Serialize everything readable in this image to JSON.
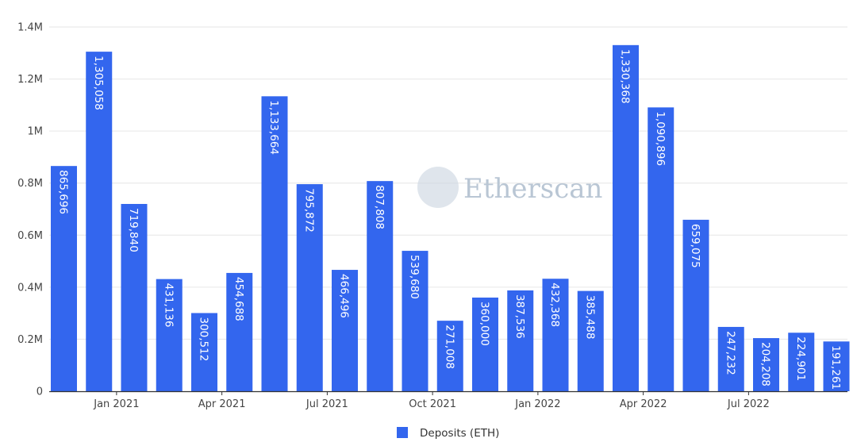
{
  "chart_data": {
    "type": "bar",
    "series": [
      {
        "name": "Deposits (ETH)",
        "color": "#3366ee",
        "values": [
          865696,
          1305058,
          719840,
          431136,
          300512,
          454688,
          1133664,
          795872,
          466496,
          807808,
          539680,
          271008,
          360000,
          387536,
          432368,
          385488,
          1330368,
          1090896,
          659075,
          247232,
          204208,
          224901,
          191261
        ],
        "value_labels": [
          "865,696",
          "1,305,058",
          "719,840",
          "431,136",
          "300,512",
          "454,688",
          "1,133,664",
          "795,872",
          "466,496",
          "807,808",
          "539,680",
          "271,008",
          "360,000",
          "387,536",
          "432,368",
          "385,488",
          "1,330,368",
          "1,090,896",
          "659,075",
          "247,232",
          "204,208",
          "224,901",
          "191,261"
        ]
      }
    ],
    "ylim": [
      0,
      1400000
    ],
    "yticks": [
      {
        "value": 0,
        "label": "0"
      },
      {
        "value": 200000,
        "label": "0.2M"
      },
      {
        "value": 400000,
        "label": "0.4M"
      },
      {
        "value": 600000,
        "label": "0.6M"
      },
      {
        "value": 800000,
        "label": "0.8M"
      },
      {
        "value": 1000000,
        "label": "1M"
      },
      {
        "value": 1200000,
        "label": "1.2M"
      },
      {
        "value": 1400000,
        "label": "1.4M"
      }
    ],
    "xticks": [
      {
        "label": "Jan 2021",
        "bar_index": 1.5
      },
      {
        "label": "Apr 2021",
        "bar_index": 4.5
      },
      {
        "label": "Jul 2021",
        "bar_index": 7.5
      },
      {
        "label": "Oct 2021",
        "bar_index": 10.5
      },
      {
        "label": "Jan 2022",
        "bar_index": 13.5
      },
      {
        "label": "Apr 2022",
        "bar_index": 16.5
      },
      {
        "label": "Jul 2022",
        "bar_index": 19.5
      }
    ],
    "grid": true,
    "legend_position": "bottom-center"
  },
  "watermark": {
    "text": "Etherscan",
    "color": "#b9c6d4"
  },
  "colors": {
    "grid": "#e6e6e6",
    "axis": "#333333",
    "bar": "#3366ee"
  }
}
